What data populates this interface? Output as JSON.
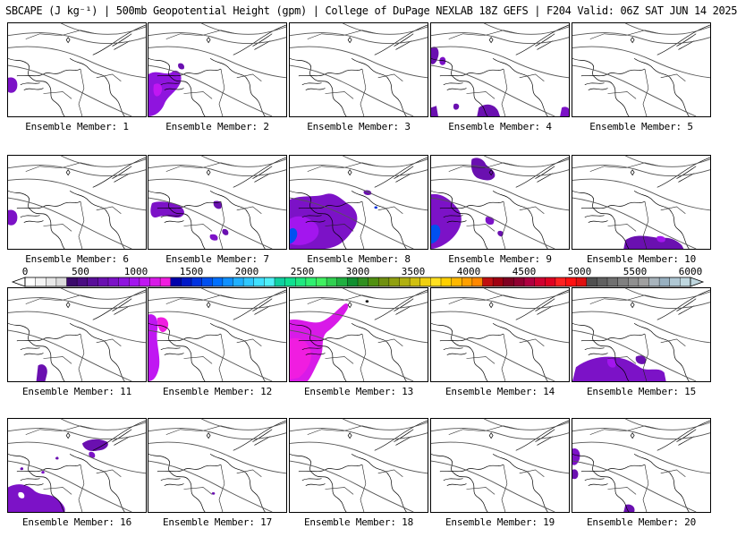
{
  "title": "SBCAPE (J kg⁻¹) | 500mb Geopotential Height (gpm) | College of DuPage NEXLAB 18Z GEFS | F204 Valid: 06Z SAT JUN 14 2025",
  "members": [
    {
      "label": "Ensemble Member: 1",
      "cape": [
        "west-edge"
      ]
    },
    {
      "label": "Ensemble Member: 2",
      "cape": [
        "great-lakes",
        "lake-dot"
      ]
    },
    {
      "label": "Ensemble Member: 3",
      "cape": []
    },
    {
      "label": "Ensemble Member: 4",
      "cape": [
        "northwest",
        "south-center",
        "south-right",
        "west-bottom"
      ]
    },
    {
      "label": "Ensemble Member: 5",
      "cape": []
    },
    {
      "label": "Ensemble Member: 6",
      "cape": [
        "west-edge"
      ]
    },
    {
      "label": "Ensemble Member: 7",
      "cape": [
        "lakes-band",
        "south-dots"
      ]
    },
    {
      "label": "Ensemble Member: 8",
      "cape": [
        "big-west",
        "mid-dot"
      ]
    },
    {
      "label": "Ensemble Member: 9",
      "cape": [
        "west-blob",
        "north-blob",
        "center-dots"
      ]
    },
    {
      "label": "Ensemble Member: 10",
      "cape": [
        "south-strip"
      ]
    },
    {
      "label": "Ensemble Member: 11",
      "cape": [
        "south-small"
      ]
    },
    {
      "label": "Ensemble Member: 12",
      "cape": [
        "west-column"
      ]
    },
    {
      "label": "Ensemble Member: 13",
      "cape": [
        "big-magenta"
      ]
    },
    {
      "label": "Ensemble Member: 14",
      "cape": []
    },
    {
      "label": "Ensemble Member: 15",
      "cape": [
        "south-band"
      ]
    },
    {
      "label": "Ensemble Member: 16",
      "cape": [
        "southwest-large",
        "northeast-small",
        "mid-specks"
      ]
    },
    {
      "label": "Ensemble Member: 17",
      "cape": [
        "tiny-south"
      ]
    },
    {
      "label": "Ensemble Member: 18",
      "cape": []
    },
    {
      "label": "Ensemble Member: 19",
      "cape": []
    },
    {
      "label": "Ensemble Member: 20",
      "cape": [
        "west-edge-small",
        "south-tip"
      ]
    }
  ],
  "colorbar": {
    "tick_labels": [
      "0",
      "500",
      "1000",
      "1500",
      "2000",
      "2500",
      "3000",
      "3500",
      "4000",
      "4500",
      "5000",
      "5500",
      "6000"
    ],
    "min": 0,
    "max": 6000,
    "bins": [
      [
        "#ffffff",
        "#f4f4f4",
        "#e8e8e8",
        "#dcdcdc"
      ],
      [
        "#3b0a6b",
        "#4a0c82",
        "#590e99",
        "#6a10b0",
        "#7c12c7",
        "#8f14de",
        "#a316ee",
        "#c017f2",
        "#d81ae8",
        "#f01de0"
      ],
      [
        "#0000aa",
        "#0018c8",
        "#0032e0",
        "#0050f0",
        "#0070ff",
        "#1090ff",
        "#20b0ff",
        "#30c8ff",
        "#40e0ff",
        "#50f0f8"
      ],
      [
        "#10d0a0",
        "#10e090",
        "#20e880",
        "#30f070",
        "#40f060",
        "#30d050",
        "#20b040",
        "#109030",
        "#309020",
        "#509010"
      ],
      [
        "#709010",
        "#90a010",
        "#b0b010",
        "#d0c010",
        "#f0d010",
        "#ffe020",
        "#ffd000",
        "#ffb800",
        "#ffa000",
        "#ff8800"
      ],
      [
        "#c01010",
        "#a00010",
        "#800020",
        "#900030",
        "#b00040",
        "#d00030",
        "#e00020",
        "#ff2020",
        "#ff1010",
        "#e01010"
      ],
      [
        "#505050",
        "#606060",
        "#707070",
        "#808080",
        "#909090",
        "#a0a0a0",
        "#a8b4bc",
        "#98b0c0",
        "#b0c8d4",
        "#c0d8e0"
      ]
    ]
  }
}
